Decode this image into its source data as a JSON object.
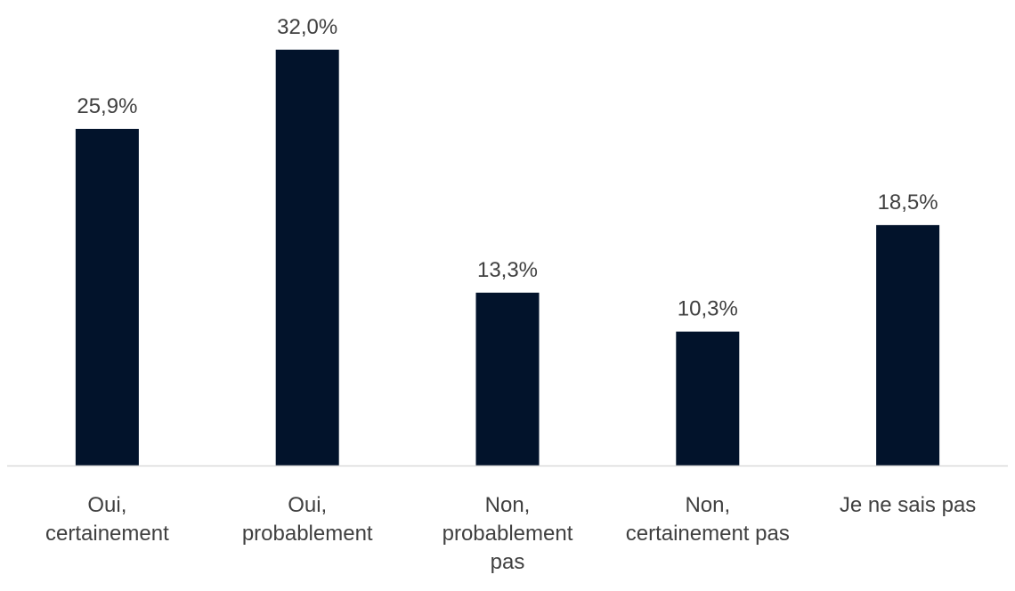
{
  "chart_data": {
    "type": "bar",
    "title": "",
    "xlabel": "",
    "ylabel": "",
    "categories": [
      [
        "Oui,",
        "certainement"
      ],
      [
        "Oui,",
        "probablement"
      ],
      [
        "Non,",
        "probablement",
        "pas"
      ],
      [
        "Non,",
        "certainement pas"
      ],
      [
        "Je ne sais pas"
      ]
    ],
    "values": [
      25.9,
      32.0,
      13.3,
      10.3,
      18.5
    ],
    "value_labels": [
      "25,9%",
      "32,0%",
      "13,3%",
      "10,3%",
      "18,5%"
    ],
    "ylim": [
      0,
      35
    ],
    "grid": false,
    "legend": "none",
    "colors": {
      "bar": "#02132b",
      "axis": "#d9d9d9",
      "text": "#404040"
    }
  }
}
